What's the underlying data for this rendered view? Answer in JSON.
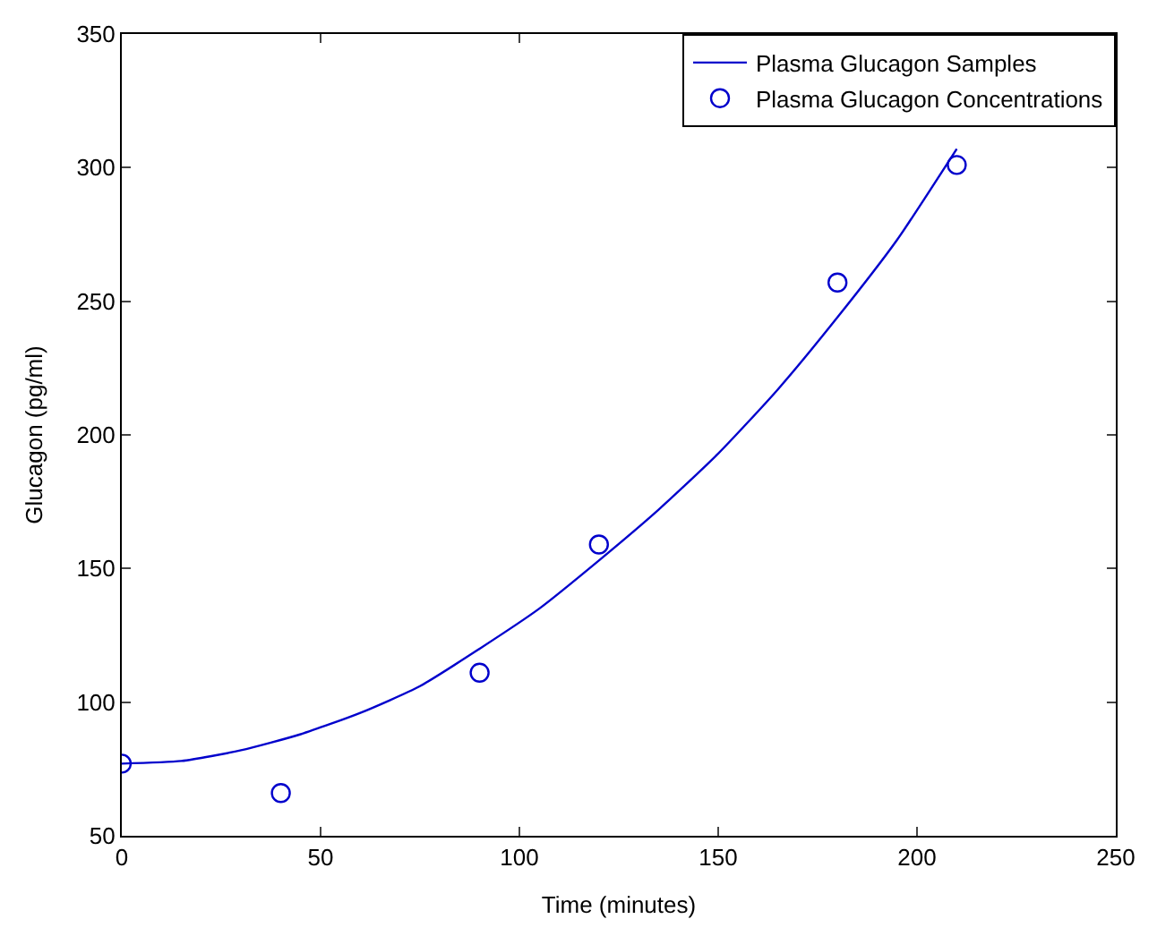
{
  "chart_data": {
    "type": "line",
    "xlabel": "Time (minutes)",
    "ylabel": "Glucagon (pg/ml)",
    "xlim": [
      0,
      250
    ],
    "xticks": [
      0,
      50,
      100,
      150,
      200,
      250
    ],
    "ylim": [
      50,
      350
    ],
    "yticks": [
      50,
      100,
      150,
      200,
      250,
      300,
      350
    ],
    "legend": "top right",
    "series": [
      {
        "name": "Plasma Glucagon Samples",
        "color": "#0000cc",
        "marker": "none",
        "line_style": "solid",
        "x": [
          0,
          15,
          30,
          45,
          60,
          75,
          90,
          105,
          120,
          135,
          150,
          165,
          180,
          195,
          210
        ],
        "values": [
          77,
          78,
          82,
          88,
          96,
          106,
          120,
          135,
          153,
          172,
          193,
          217,
          244,
          273,
          307
        ]
      },
      {
        "name": "Plasma Glucagon Concentrations",
        "type": "scatter",
        "color": "#0000cc",
        "marker": "circle",
        "x": [
          0,
          40,
          90,
          120,
          180,
          210
        ],
        "values": [
          77,
          66,
          111,
          159,
          257,
          301
        ]
      }
    ]
  }
}
